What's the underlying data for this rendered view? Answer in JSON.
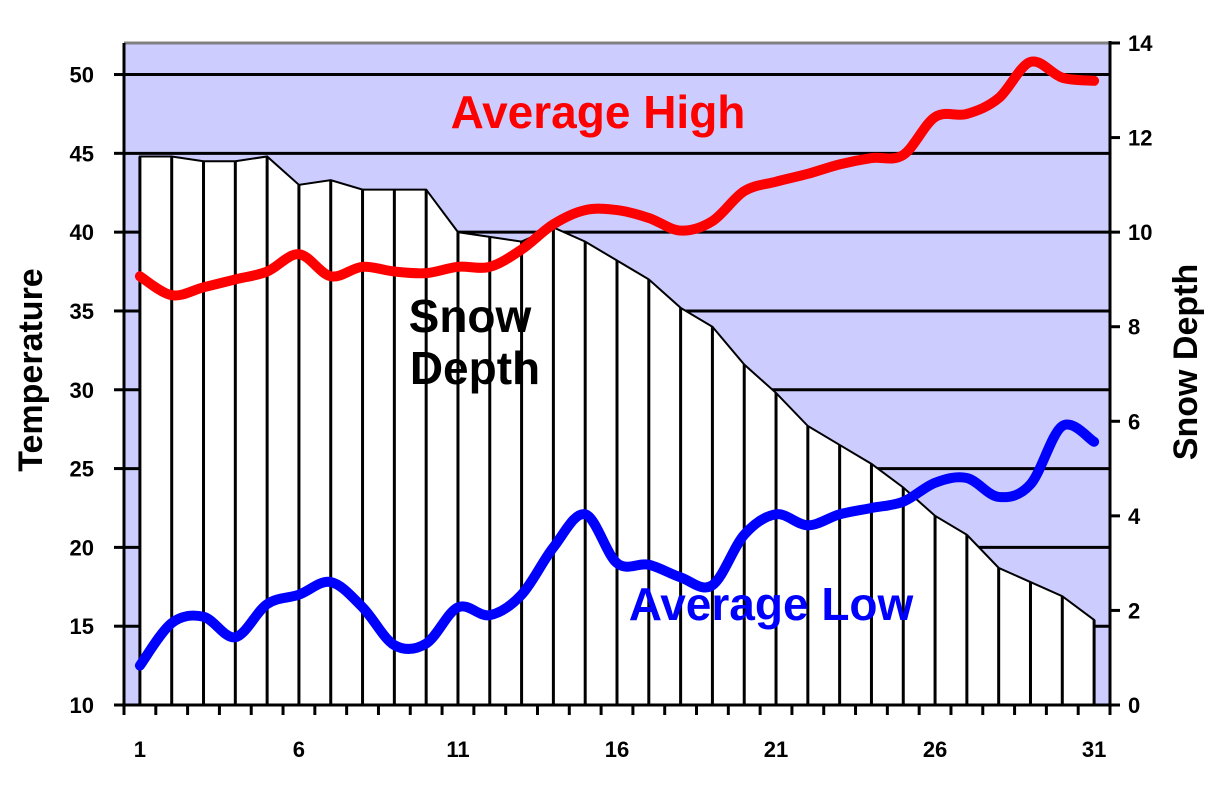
{
  "chart_data": {
    "type": "line",
    "title": "",
    "xlabel": "",
    "ylabel": "Temperature",
    "y2label": "Snow Depth",
    "categories": [
      1,
      2,
      3,
      4,
      5,
      6,
      7,
      8,
      9,
      10,
      11,
      12,
      13,
      14,
      15,
      16,
      17,
      18,
      19,
      20,
      21,
      22,
      23,
      24,
      25,
      26,
      27,
      28,
      29,
      30,
      31
    ],
    "x_tick_labels": [
      "1",
      "6",
      "11",
      "16",
      "21",
      "26",
      "31"
    ],
    "y_ticks": [
      10,
      15,
      20,
      25,
      30,
      35,
      40,
      45,
      50
    ],
    "y2_ticks": [
      0,
      2,
      4,
      6,
      8,
      10,
      12,
      14
    ],
    "ylim": [
      10,
      52
    ],
    "y2lim": [
      0,
      14
    ],
    "grid": true,
    "colors": {
      "background": "#ccccff",
      "high": "#ff0000",
      "low": "#0000ff",
      "snow_fill": "#ffffff",
      "snow_outline": "#000000"
    },
    "series": [
      {
        "name": "Average High",
        "axis": "left",
        "kind": "line",
        "values": [
          37.2,
          36.0,
          36.5,
          37.0,
          37.5,
          38.6,
          37.2,
          37.8,
          37.5,
          37.4,
          37.8,
          37.8,
          38.9,
          40.5,
          41.4,
          41.4,
          40.9,
          40.1,
          40.7,
          42.6,
          43.2,
          43.7,
          44.3,
          44.7,
          44.9,
          47.3,
          47.5,
          48.5,
          50.8,
          49.8,
          49.6
        ]
      },
      {
        "name": "Average Low",
        "axis": "left",
        "kind": "line",
        "values": [
          12.5,
          15.2,
          15.6,
          14.3,
          16.4,
          17.0,
          17.8,
          16.2,
          13.8,
          13.9,
          16.2,
          15.7,
          17.0,
          20.0,
          22.1,
          19.0,
          18.9,
          18.1,
          17.6,
          20.8,
          22.1,
          21.4,
          22.1,
          22.5,
          22.9,
          24.1,
          24.4,
          23.2,
          24.0,
          27.7,
          26.7
        ]
      },
      {
        "name": "Snow Depth",
        "axis": "right",
        "kind": "area",
        "values": [
          11.6,
          11.6,
          11.5,
          11.5,
          11.6,
          11.0,
          11.1,
          10.9,
          10.9,
          10.9,
          10.0,
          9.9,
          9.8,
          10.1,
          9.8,
          9.4,
          9.0,
          8.4,
          8.0,
          7.2,
          6.6,
          5.9,
          5.5,
          5.1,
          4.6,
          4.0,
          3.6,
          2.9,
          2.6,
          2.3,
          1.8
        ]
      }
    ],
    "annotations": {
      "high": "Average High",
      "snow_line1": "Snow",
      "snow_line2": "Depth",
      "low": "Average Low"
    }
  }
}
